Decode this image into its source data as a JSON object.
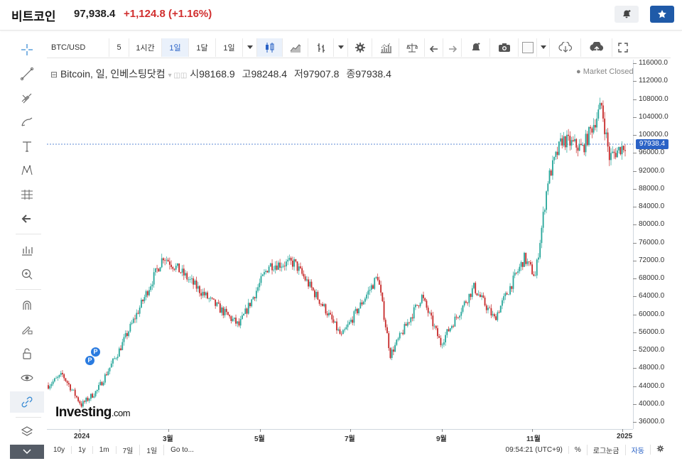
{
  "header": {
    "title": "비트코인",
    "price": "97,938.4",
    "change": "+1,124.8",
    "change_pct": "(+1.16%)",
    "alert_icon": "bell-plus-icon",
    "watchlist_icon": "star-icon"
  },
  "toolbar": {
    "symbol": "BTC/USD",
    "intervals": [
      "5",
      "1시간",
      "1일",
      "1달",
      "1일"
    ],
    "active_interval": "1일"
  },
  "legend": {
    "name": "Bitcoin, 일, 인베스팅닷컴",
    "open_label": "시",
    "open": "98168.9",
    "high_label": "고",
    "high": "98248.4",
    "low_label": "저",
    "low": "97907.8",
    "close_label": "종",
    "close": "97938.4",
    "market_status": "● Market Closed"
  },
  "current_price_tag": "97938.4",
  "logo": {
    "main": "Investing",
    "suffix": ".com"
  },
  "chart_data": {
    "type": "candlestick",
    "title": "Bitcoin, 일, 인베스팅닷컴",
    "x_labels": [
      "2024",
      "3월",
      "5월",
      "7월",
      "9월",
      "11월",
      "2025"
    ],
    "y_ticks": [
      "116000.0",
      "112000.0",
      "108000.0",
      "104000.0",
      "100000.0",
      "96000.0",
      "92000.0",
      "88000.0",
      "84000.0",
      "80000.0",
      "76000.0",
      "72000.0",
      "68000.0",
      "64000.0",
      "60000.0",
      "56000.0",
      "52000.0",
      "48000.0",
      "44000.0",
      "40000.0",
      "36000.0"
    ],
    "ylim": [
      34000,
      117500
    ],
    "up_color": "#26a69a",
    "down_color": "#c62828",
    "annotations": [
      "P",
      "P"
    ],
    "approx_close_path": [
      [
        "2024-01-01",
        44200
      ],
      [
        "2024-01-10",
        46500
      ],
      [
        "2024-01-22",
        39800
      ],
      [
        "2024-02-01",
        43000
      ],
      [
        "2024-02-15",
        52000
      ],
      [
        "2024-02-28",
        61500
      ],
      [
        "2024-03-14",
        73000
      ],
      [
        "2024-03-25",
        69500
      ],
      [
        "2024-04-13",
        63000
      ],
      [
        "2024-05-01",
        57500
      ],
      [
        "2024-05-20",
        71000
      ],
      [
        "2024-06-05",
        71500
      ],
      [
        "2024-06-25",
        61000
      ],
      [
        "2024-07-05",
        55000
      ],
      [
        "2024-07-28",
        68500
      ],
      [
        "2024-08-05",
        51000
      ],
      [
        "2024-08-25",
        64000
      ],
      [
        "2024-09-06",
        53500
      ],
      [
        "2024-09-27",
        66000
      ],
      [
        "2024-10-10",
        59000
      ],
      [
        "2024-10-29",
        72500
      ],
      [
        "2024-11-05",
        68500
      ],
      [
        "2024-11-13",
        90000
      ],
      [
        "2024-11-22",
        99000
      ],
      [
        "2024-12-05",
        97000
      ],
      [
        "2024-12-17",
        106500
      ],
      [
        "2024-12-22",
        95000
      ],
      [
        "2025-01-01",
        97938.4
      ]
    ]
  },
  "bottom": {
    "ranges": [
      "10y",
      "1y",
      "1m",
      "7일",
      "1일",
      "Go to..."
    ],
    "time": "09:54:21 (UTC+9)",
    "percent": "%",
    "log": "로그눈금",
    "auto": "자동"
  }
}
